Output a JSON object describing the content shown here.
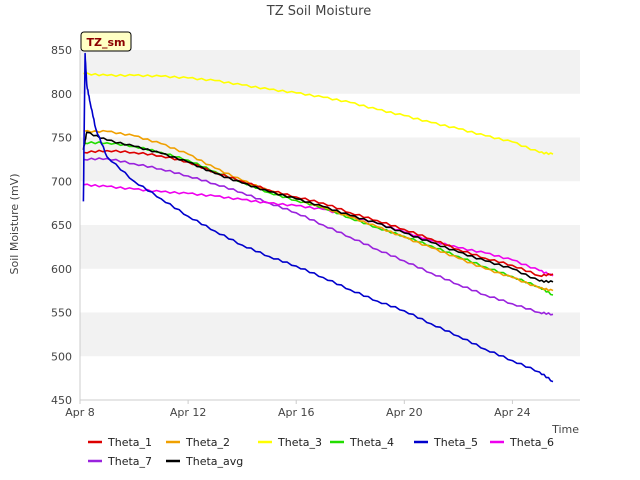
{
  "chart_data": {
    "type": "line",
    "title": "TZ Soil Moisture",
    "xlabel": "Time",
    "ylabel": "Soil Moisture (mV)",
    "badge": "TZ_sm",
    "x_unit": "date",
    "xlim": [
      "2023-04-08",
      "2023-04-26T12:00"
    ],
    "ylim": [
      450,
      850
    ],
    "x_ticks": [
      {
        "label": "Apr 8",
        "date": "2023-04-08"
      },
      {
        "label": "Apr 12",
        "date": "2023-04-12"
      },
      {
        "label": "Apr 16",
        "date": "2023-04-16"
      },
      {
        "label": "Apr 20",
        "date": "2023-04-20"
      },
      {
        "label": "Apr 24",
        "date": "2023-04-24"
      }
    ],
    "y_ticks": [
      450,
      500,
      550,
      600,
      650,
      700,
      750,
      800,
      850
    ],
    "background_bands": "alternating light gray",
    "legend_position": "bottom",
    "series": [
      {
        "name": "Theta_1",
        "color": "#dd0000",
        "x": [
          "2023-04-08T03:00",
          "2023-04-09",
          "2023-04-10",
          "2023-04-11",
          "2023-04-12",
          "2023-04-13",
          "2023-04-14",
          "2023-04-15",
          "2023-04-16",
          "2023-04-17",
          "2023-04-18",
          "2023-04-19",
          "2023-04-20",
          "2023-04-21",
          "2023-04-22",
          "2023-04-23",
          "2023-04-24",
          "2023-04-25",
          "2023-04-25T12:00"
        ],
        "y": [
          733,
          735,
          733,
          729,
          722,
          710,
          700,
          690,
          682,
          675,
          664,
          655,
          645,
          634,
          622,
          612,
          604,
          592,
          594
        ]
      },
      {
        "name": "Theta_2",
        "color": "#f0a000",
        "x": [
          "2023-04-08T03:00",
          "2023-04-09",
          "2023-04-10",
          "2023-04-11",
          "2023-04-12",
          "2023-04-13",
          "2023-04-14",
          "2023-04-15",
          "2023-04-16",
          "2023-04-17",
          "2023-04-18",
          "2023-04-19",
          "2023-04-20",
          "2023-04-21",
          "2023-04-22",
          "2023-04-23",
          "2023-04-24",
          "2023-04-25",
          "2023-04-25T12:00"
        ],
        "y": [
          757,
          757,
          752,
          743,
          731,
          715,
          701,
          689,
          680,
          670,
          659,
          648,
          636,
          624,
          612,
          600,
          590,
          578,
          575
        ]
      },
      {
        "name": "Theta_3",
        "color": "#ffff00",
        "x": [
          "2023-04-08T03:00",
          "2023-04-09",
          "2023-04-10",
          "2023-04-11",
          "2023-04-12",
          "2023-04-13",
          "2023-04-14",
          "2023-04-15",
          "2023-04-16",
          "2023-04-17",
          "2023-04-18",
          "2023-04-19",
          "2023-04-20",
          "2023-04-21",
          "2023-04-22",
          "2023-04-23",
          "2023-04-24",
          "2023-04-25",
          "2023-04-25T12:00"
        ],
        "y": [
          823,
          821,
          821,
          820,
          818,
          815,
          810,
          805,
          801,
          796,
          790,
          782,
          775,
          767,
          760,
          752,
          745,
          733,
          731
        ]
      },
      {
        "name": "Theta_4",
        "color": "#22dd00",
        "x": [
          "2023-04-08T03:00",
          "2023-04-09",
          "2023-04-10",
          "2023-04-11",
          "2023-04-12",
          "2023-04-13",
          "2023-04-14",
          "2023-04-15",
          "2023-04-16",
          "2023-04-17",
          "2023-04-18",
          "2023-04-19",
          "2023-04-20",
          "2023-04-21",
          "2023-04-22",
          "2023-04-23",
          "2023-04-24",
          "2023-04-25",
          "2023-04-25T12:00"
        ],
        "y": [
          744,
          744,
          740,
          733,
          724,
          711,
          699,
          687,
          678,
          670,
          658,
          647,
          637,
          626,
          614,
          602,
          591,
          579,
          570
        ]
      },
      {
        "name": "Theta_5",
        "color": "#0000cc",
        "x": [
          "2023-04-08T03:00",
          "2023-04-08T04:30",
          "2023-04-08T06:00",
          "2023-04-08T09:00",
          "2023-04-08T14:00",
          "2023-04-09",
          "2023-04-10",
          "2023-04-11",
          "2023-04-12",
          "2023-04-13",
          "2023-04-14",
          "2023-04-15",
          "2023-04-16",
          "2023-04-17",
          "2023-04-18",
          "2023-04-19",
          "2023-04-20",
          "2023-04-21",
          "2023-04-22",
          "2023-04-23",
          "2023-04-24",
          "2023-04-25",
          "2023-04-25T12:00"
        ],
        "y": [
          677,
          846,
          810,
          790,
          760,
          728,
          700,
          680,
          660,
          643,
          627,
          614,
          603,
          590,
          576,
          563,
          552,
          537,
          523,
          508,
          495,
          482,
          471
        ]
      },
      {
        "name": "Theta_6",
        "color": "#ee00ee",
        "x": [
          "2023-04-08T03:00",
          "2023-04-09",
          "2023-04-10",
          "2023-04-11",
          "2023-04-12",
          "2023-04-13",
          "2023-04-14",
          "2023-04-15",
          "2023-04-16",
          "2023-04-17",
          "2023-04-18",
          "2023-04-19",
          "2023-04-20",
          "2023-04-21",
          "2023-04-22",
          "2023-04-23",
          "2023-04-24",
          "2023-04-25",
          "2023-04-25T12:00"
        ],
        "y": [
          696,
          694,
          691,
          688,
          686,
          683,
          679,
          675,
          672,
          668,
          660,
          652,
          642,
          632,
          624,
          618,
          610,
          598,
          592
        ]
      },
      {
        "name": "Theta_7",
        "color": "#9922dd",
        "x": [
          "2023-04-08T03:00",
          "2023-04-09",
          "2023-04-10",
          "2023-04-11",
          "2023-04-12",
          "2023-04-13",
          "2023-04-14",
          "2023-04-15",
          "2023-04-16",
          "2023-04-17",
          "2023-04-18",
          "2023-04-19",
          "2023-04-20",
          "2023-04-21",
          "2023-04-22",
          "2023-04-23",
          "2023-04-24",
          "2023-04-25",
          "2023-04-25T12:00"
        ],
        "y": [
          725,
          726,
          720,
          714,
          706,
          697,
          687,
          675,
          664,
          650,
          636,
          622,
          609,
          595,
          582,
          570,
          560,
          550,
          548
        ]
      },
      {
        "name": "Theta_avg",
        "color": "#000000",
        "x": [
          "2023-04-08T03:00",
          "2023-04-08T06:00",
          "2023-04-09",
          "2023-04-10",
          "2023-04-11",
          "2023-04-12",
          "2023-04-13",
          "2023-04-14",
          "2023-04-15",
          "2023-04-16",
          "2023-04-17",
          "2023-04-18",
          "2023-04-19",
          "2023-04-20",
          "2023-04-21",
          "2023-04-22",
          "2023-04-23",
          "2023-04-24",
          "2023-04-25",
          "2023-04-25T12:00"
        ],
        "y": [
          736,
          756,
          747,
          740,
          732,
          722,
          709,
          698,
          688,
          680,
          671,
          661,
          652,
          641,
          630,
          619,
          609,
          600,
          586,
          585
        ]
      }
    ]
  }
}
